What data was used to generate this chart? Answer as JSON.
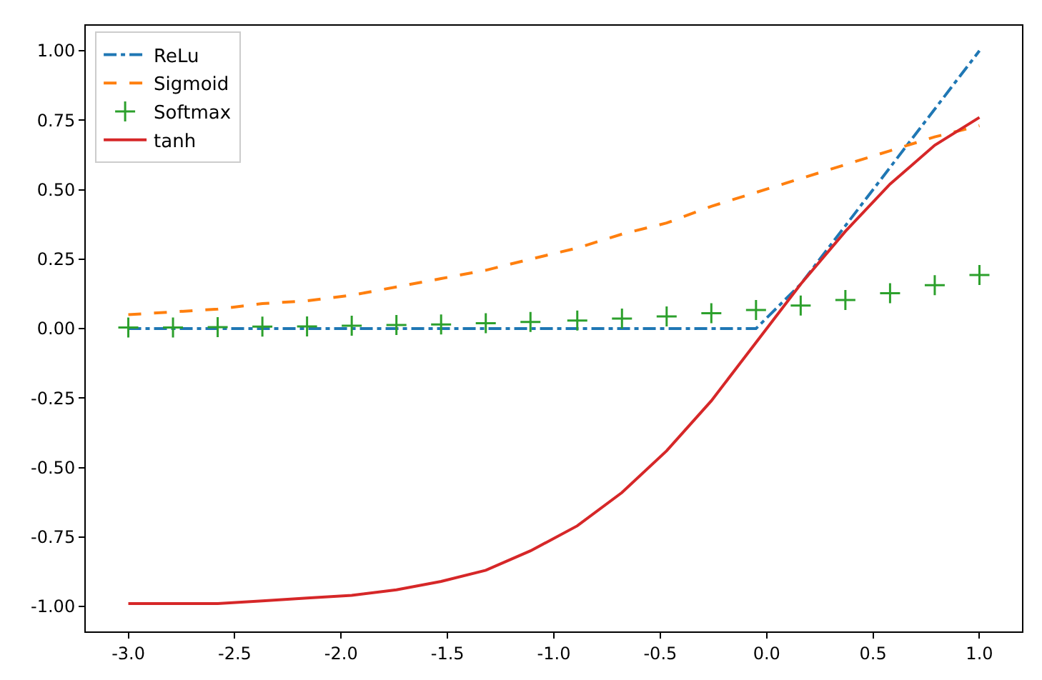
{
  "chart_data": {
    "type": "line",
    "x": [
      -3.0,
      -2.79,
      -2.58,
      -2.37,
      -2.16,
      -1.95,
      -1.74,
      -1.53,
      -1.32,
      -1.11,
      -0.89,
      -0.68,
      -0.47,
      -0.26,
      -0.05,
      0.16,
      0.37,
      0.58,
      0.79,
      1.0
    ],
    "series": [
      {
        "name": "ReLu",
        "color": "#1f77b4",
        "line_style": "dashdot",
        "values": [
          0,
          0,
          0,
          0,
          0,
          0,
          0,
          0,
          0,
          0,
          0,
          0,
          0,
          0,
          0,
          0.16,
          0.37,
          0.58,
          0.79,
          1.0
        ]
      },
      {
        "name": "Sigmoid",
        "color": "#ff7f0e",
        "line_style": "dashed",
        "values": [
          0.05,
          0.06,
          0.07,
          0.09,
          0.1,
          0.12,
          0.15,
          0.18,
          0.21,
          0.25,
          0.29,
          0.34,
          0.38,
          0.44,
          0.49,
          0.54,
          0.59,
          0.64,
          0.69,
          0.73
        ]
      },
      {
        "name": "Softmax",
        "color": "#2ca02c",
        "type": "scatter",
        "marker": "cross",
        "values": [
          0.004,
          0.004,
          0.005,
          0.007,
          0.008,
          0.01,
          0.013,
          0.015,
          0.019,
          0.024,
          0.029,
          0.036,
          0.044,
          0.055,
          0.067,
          0.083,
          0.103,
          0.127,
          0.156,
          0.193
        ]
      },
      {
        "name": "tanh",
        "color": "#d62728",
        "line_style": "solid",
        "values": [
          -0.99,
          -0.99,
          -0.99,
          -0.98,
          -0.97,
          -0.96,
          -0.94,
          -0.91,
          -0.87,
          -0.8,
          -0.71,
          -0.59,
          -0.44,
          -0.26,
          -0.05,
          0.16,
          0.35,
          0.52,
          0.66,
          0.76
        ]
      }
    ],
    "xlim": [
      -3.2,
      1.2
    ],
    "xticks": [
      {
        "value": -3.0,
        "label": "-3.0"
      },
      {
        "value": -2.5,
        "label": "-2.5"
      },
      {
        "value": -2.0,
        "label": "-2.0"
      },
      {
        "value": -1.5,
        "label": "-1.5"
      },
      {
        "value": -1.0,
        "label": "-1.0"
      },
      {
        "value": -0.5,
        "label": "-0.5"
      },
      {
        "value": 0.0,
        "label": "0.0"
      },
      {
        "value": 0.5,
        "label": "0.5"
      },
      {
        "value": 1.0,
        "label": "1.0"
      }
    ],
    "ylim": [
      -1.09,
      1.09
    ],
    "yticks": [
      {
        "value": -1.0,
        "label": "-1.00"
      },
      {
        "value": -0.75,
        "label": "-0.75"
      },
      {
        "value": -0.5,
        "label": "-0.50"
      },
      {
        "value": -0.25,
        "label": "-0.25"
      },
      {
        "value": 0.0,
        "label": "0.00"
      },
      {
        "value": 0.25,
        "label": "0.25"
      },
      {
        "value": 0.5,
        "label": "0.50"
      },
      {
        "value": 0.75,
        "label": "0.75"
      },
      {
        "value": 1.0,
        "label": "1.00"
      }
    ],
    "grid": false,
    "legend": "top left"
  }
}
